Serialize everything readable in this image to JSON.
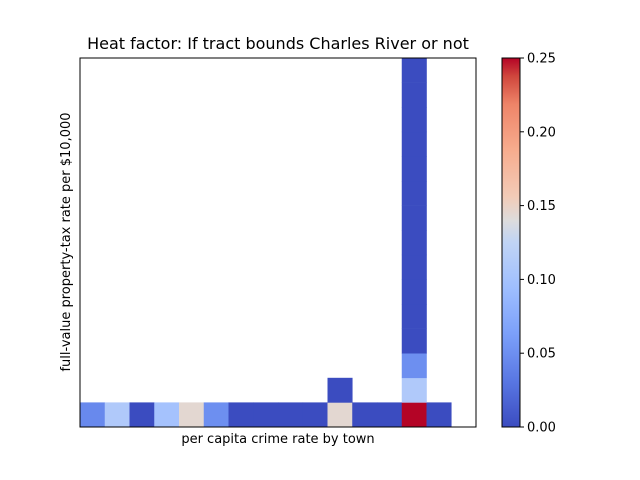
{
  "chart_data": {
    "type": "heatmap",
    "title": "Heat factor: If tract bounds Charles River or not",
    "xlabel": "per capita crime rate by town",
    "ylabel": "full-value property-tax rate per $10,000",
    "n_cols": 16,
    "n_rows": 15,
    "colormap": "coolwarm",
    "colorbar": {
      "vmin": 0.0,
      "vmax": 0.25,
      "ticks": [
        "0.00",
        "0.05",
        "0.10",
        "0.15",
        "0.20",
        "0.25"
      ]
    },
    "cells_note_row0_is_bottom": true,
    "cells": [
      {
        "col": 0,
        "row": 0,
        "value": 0.045
      },
      {
        "col": 1,
        "row": 0,
        "value": 0.11
      },
      {
        "col": 2,
        "row": 0,
        "value": 0.0
      },
      {
        "col": 3,
        "row": 0,
        "value": 0.1
      },
      {
        "col": 4,
        "row": 0,
        "value": 0.145
      },
      {
        "col": 5,
        "row": 0,
        "value": 0.05
      },
      {
        "col": 6,
        "row": 0,
        "value": 0.0
      },
      {
        "col": 7,
        "row": 0,
        "value": 0.0
      },
      {
        "col": 8,
        "row": 0,
        "value": 0.0
      },
      {
        "col": 9,
        "row": 0,
        "value": 0.0
      },
      {
        "col": 10,
        "row": 0,
        "value": 0.145
      },
      {
        "col": 11,
        "row": 0,
        "value": 0.0
      },
      {
        "col": 12,
        "row": 0,
        "value": 0.0
      },
      {
        "col": 13,
        "row": 0,
        "value": 0.25
      },
      {
        "col": 14,
        "row": 0,
        "value": 0.0
      },
      {
        "col": 10,
        "row": 1,
        "value": 0.0
      },
      {
        "col": 13,
        "row": 1,
        "value": 0.11
      },
      {
        "col": 13,
        "row": 2,
        "value": 0.05
      },
      {
        "col": 13,
        "row": 3,
        "value": 0.0
      },
      {
        "col": 13,
        "row": 4,
        "value": 0.0
      },
      {
        "col": 13,
        "row": 5,
        "value": 0.0
      },
      {
        "col": 13,
        "row": 6,
        "value": 0.0
      },
      {
        "col": 13,
        "row": 7,
        "value": 0.0
      },
      {
        "col": 13,
        "row": 8,
        "value": 0.0
      },
      {
        "col": 13,
        "row": 9,
        "value": 0.0
      },
      {
        "col": 13,
        "row": 10,
        "value": 0.0
      },
      {
        "col": 13,
        "row": 11,
        "value": 0.0
      },
      {
        "col": 13,
        "row": 12,
        "value": 0.0
      },
      {
        "col": 13,
        "row": 13,
        "value": 0.0
      },
      {
        "col": 13,
        "row": 14,
        "value": 0.0
      }
    ]
  }
}
